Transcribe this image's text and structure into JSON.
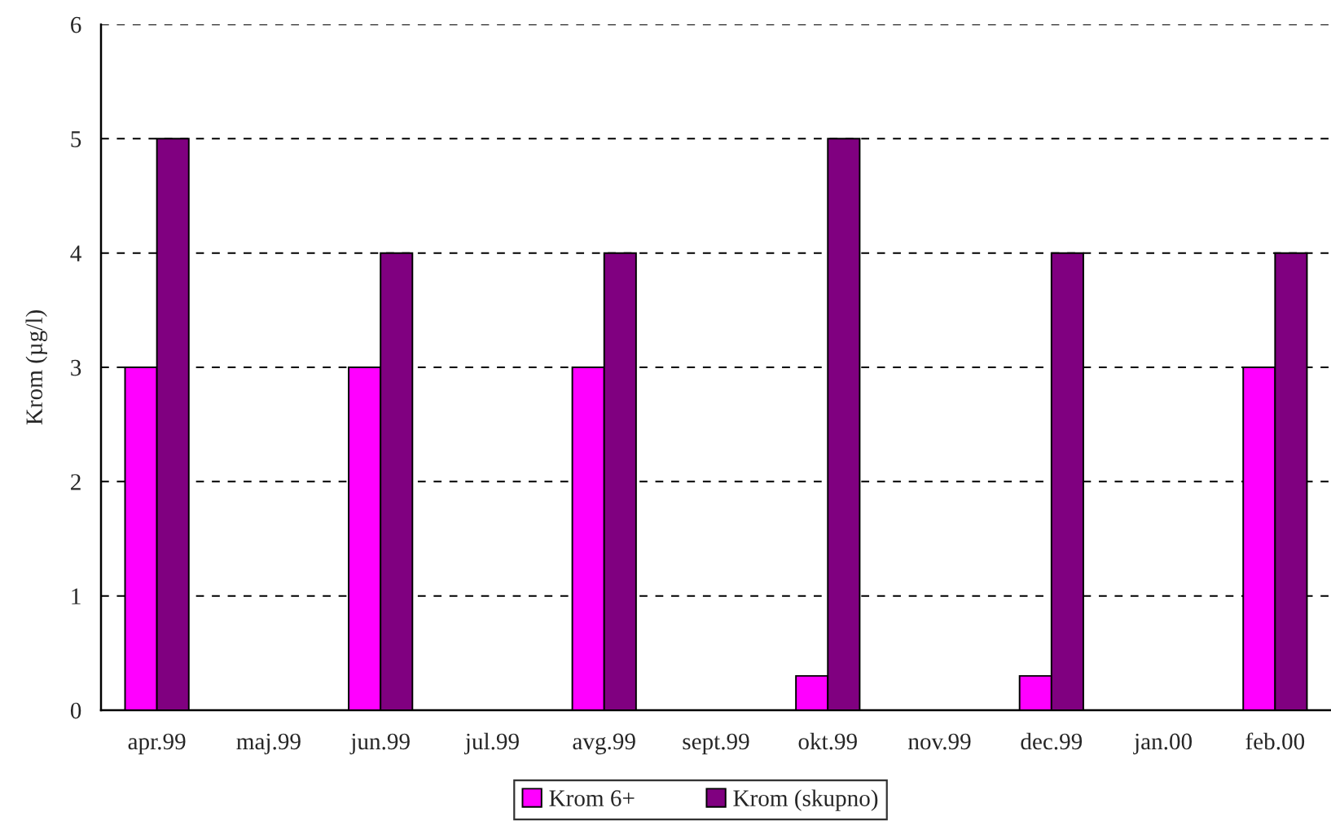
{
  "chart_data": {
    "type": "bar",
    "ylabel": "Krom (µg/l)",
    "categories": [
      "apr.99",
      "maj.99",
      "jun.99",
      "jul.99",
      "avg.99",
      "sept.99",
      "okt.99",
      "nov.99",
      "dec.99",
      "jan.00",
      "feb.00"
    ],
    "series": [
      {
        "name": "Krom 6+",
        "color": "#ff00ff",
        "values": [
          3,
          null,
          3,
          null,
          3,
          null,
          0.3,
          null,
          0.3,
          null,
          3
        ]
      },
      {
        "name": "Krom (skupno)",
        "color": "#800080",
        "values": [
          5,
          null,
          4,
          null,
          4,
          null,
          5,
          null,
          4,
          null,
          4
        ]
      }
    ],
    "ylim": [
      0,
      6
    ],
    "yticks": [
      0,
      1,
      2,
      3,
      4,
      5,
      6
    ],
    "grid": "y",
    "legend": "bottom"
  }
}
